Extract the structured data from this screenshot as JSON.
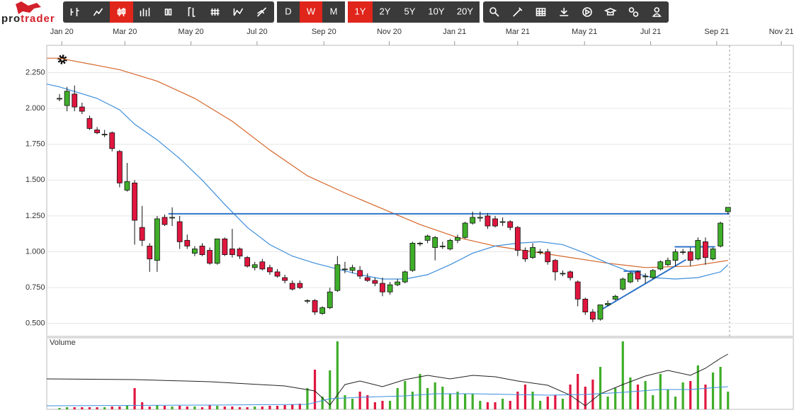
{
  "logo": {
    "first": "pro",
    "second": "trader"
  },
  "toolbar": {
    "chart_types_active": 2,
    "intervals": [
      "D",
      "W",
      "M"
    ],
    "active_interval": 1,
    "ranges": [
      "1Y",
      "2Y",
      "5Y",
      "10Y",
      "20Y"
    ],
    "active_range": 0
  },
  "chart_data": {
    "type": "candlestick",
    "xlim": [
      -1.7,
      97.7
    ],
    "xticks": [
      {
        "value": 0.3,
        "label": "Jan 20"
      },
      {
        "value": 8.7,
        "label": "Mar 20"
      },
      {
        "value": 17.5,
        "label": "May 20"
      },
      {
        "value": 26.3,
        "label": "Jul 20"
      },
      {
        "value": 35.2,
        "label": "Sep 20"
      },
      {
        "value": 43.9,
        "label": "Nov 20"
      },
      {
        "value": 52.6,
        "label": "Jan 21"
      },
      {
        "value": 61.0,
        "label": "Mar 21"
      },
      {
        "value": 69.9,
        "label": "May 21"
      },
      {
        "value": 78.7,
        "label": "Jul 21"
      },
      {
        "value": 87.5,
        "label": "Sep 21"
      },
      {
        "value": 96.1,
        "label": "Nov 21"
      }
    ],
    "ylim": [
      0.41,
      2.44
    ],
    "yticks": [
      {
        "value": 0.5,
        "label": "0.500"
      },
      {
        "value": 0.75,
        "label": "0.750"
      },
      {
        "value": 1,
        "label": "1.000"
      },
      {
        "value": 1.25,
        "label": "1.250"
      },
      {
        "value": 1.5,
        "label": "1.500"
      },
      {
        "value": 1.75,
        "label": "1.750"
      },
      {
        "value": 2,
        "label": "2.000"
      },
      {
        "value": 2.25,
        "label": "2.250"
      }
    ],
    "grid": true,
    "up_color": "#3fae29",
    "down_color": "#e0163f",
    "x": [
      0,
      1,
      2,
      3,
      4,
      5,
      6,
      7,
      8,
      9,
      10,
      11,
      12,
      13,
      14,
      15,
      16,
      17,
      18,
      19,
      20,
      21,
      22,
      23,
      24,
      25,
      26,
      27,
      28,
      29,
      30,
      31,
      32,
      33,
      34,
      35,
      36,
      37,
      38,
      39,
      40,
      41,
      42,
      43,
      44,
      45,
      46,
      47,
      48,
      49,
      50,
      51,
      52,
      53,
      54,
      55,
      56,
      57,
      58,
      59,
      60,
      61,
      62,
      63,
      64,
      65,
      66,
      67,
      68,
      69,
      70,
      71,
      72,
      73,
      74,
      75,
      76,
      77,
      78,
      79,
      80,
      81,
      82,
      83,
      84,
      85,
      86,
      87,
      88,
      89
    ],
    "open": [
      2.07,
      2.02,
      2.1,
      2.01,
      1.93,
      1.85,
      1.82,
      1.83,
      1.7,
      1.43,
      1.48,
      1.17,
      1.04,
      0.94,
      1.24,
      1.24,
      1.21,
      1.08,
      0.99,
      1.04,
      1.01,
      0.92,
      1.09,
      1.02,
      1.02,
      0.96,
      0.89,
      0.93,
      0.89,
      0.86,
      0.82,
      0.78,
      0.78,
      0.66,
      0.66,
      0.57,
      0.61,
      0.73,
      0.88,
      0.87,
      0.87,
      0.82,
      0.8,
      0.78,
      0.72,
      0.77,
      0.79,
      0.87,
      1.06,
      1.08,
      1.03,
      1.04,
      1.02,
      1.08,
      1.1,
      1.2,
      1.24,
      1.25,
      1.23,
      1.21,
      1.21,
      1.17,
      1.01,
      0.96,
      1.0,
      1.0,
      0.94,
      0.85,
      0.86,
      0.79,
      0.67,
      0.58,
      0.53,
      0.63,
      0.67,
      0.74,
      0.79,
      0.86,
      0.83,
      0.82,
      0.88,
      0.91,
      0.94,
      1.0,
      1.0,
      0.95,
      1.07,
      0.95,
      1.04,
      1.28
    ],
    "high": [
      2.1,
      2.15,
      2.16,
      2.04,
      1.95,
      1.87,
      1.85,
      1.84,
      1.71,
      1.62,
      1.5,
      1.32,
      1.06,
      1.25,
      1.26,
      1.31,
      1.25,
      1.12,
      1.04,
      1.06,
      1.03,
      1.09,
      1.1,
      1.16,
      1.03,
      0.97,
      0.93,
      0.95,
      0.91,
      0.88,
      0.84,
      0.8,
      0.8,
      0.67,
      0.67,
      0.62,
      0.75,
      0.97,
      0.93,
      0.91,
      0.9,
      0.85,
      0.82,
      0.82,
      0.79,
      0.81,
      0.87,
      1.07,
      1.07,
      1.12,
      1.11,
      1.07,
      1.09,
      1.12,
      1.21,
      1.28,
      1.28,
      1.27,
      1.25,
      1.24,
      1.22,
      1.18,
      1.03,
      1.06,
      1.02,
      1.02,
      0.95,
      0.87,
      0.87,
      0.8,
      0.68,
      0.6,
      0.63,
      0.66,
      0.7,
      0.82,
      0.86,
      0.87,
      0.85,
      0.88,
      0.94,
      0.96,
      1.02,
      1.02,
      1.03,
      1.1,
      1.1,
      1.03,
      1.21,
      1.31
    ],
    "low": [
      2.05,
      1.98,
      1.98,
      1.96,
      1.85,
      1.82,
      1.8,
      1.7,
      1.45,
      1.42,
      1.05,
      1.04,
      0.86,
      0.86,
      1.18,
      1.18,
      1.02,
      1.02,
      0.97,
      0.97,
      0.91,
      0.91,
      0.97,
      0.96,
      0.95,
      0.89,
      0.87,
      0.87,
      0.84,
      0.82,
      0.78,
      0.73,
      0.74,
      0.64,
      0.56,
      0.56,
      0.6,
      0.72,
      0.85,
      0.85,
      0.81,
      0.79,
      0.76,
      0.69,
      0.7,
      0.76,
      0.78,
      0.86,
      1.04,
      1.06,
      0.94,
      1.02,
      1.01,
      1.06,
      1.09,
      1.19,
      1.21,
      1.16,
      1.17,
      1.18,
      1.15,
      0.97,
      0.93,
      0.95,
      0.98,
      0.91,
      0.8,
      0.83,
      0.8,
      0.62,
      0.56,
      0.51,
      0.52,
      0.62,
      0.66,
      0.73,
      0.78,
      0.79,
      0.78,
      0.81,
      0.87,
      0.9,
      0.9,
      0.98,
      0.9,
      0.94,
      0.91,
      0.94,
      1.03,
      1.26
    ],
    "close": [
      2.07,
      2.12,
      2.01,
      1.98,
      1.86,
      1.83,
      1.82,
      1.72,
      1.48,
      1.49,
      1.22,
      1.08,
      0.95,
      1.23,
      1.19,
      1.24,
      1.07,
      1.04,
      1.02,
      0.98,
      0.92,
      1.09,
      0.98,
      0.98,
      0.97,
      0.9,
      0.91,
      0.88,
      0.86,
      0.83,
      0.8,
      0.74,
      0.75,
      0.66,
      0.58,
      0.61,
      0.72,
      0.91,
      0.88,
      0.89,
      0.83,
      0.8,
      0.78,
      0.72,
      0.77,
      0.79,
      0.86,
      1.06,
      1.06,
      1.11,
      1.1,
      1.04,
      1.08,
      1.1,
      1.2,
      1.24,
      1.24,
      1.18,
      1.18,
      1.21,
      1.17,
      1.01,
      0.95,
      1.03,
      1.0,
      0.93,
      0.86,
      0.85,
      0.82,
      0.67,
      0.58,
      0.53,
      0.63,
      0.64,
      0.69,
      0.81,
      0.85,
      0.81,
      0.83,
      0.87,
      0.93,
      0.94,
      1.0,
      1.0,
      0.94,
      1.08,
      0.96,
      1.02,
      1.2,
      1.31
    ],
    "moving_averages": [
      {
        "color": "#d5662a",
        "x": [
          -1.7,
          0,
          5,
          8,
          13,
          18,
          23,
          28,
          33,
          38,
          43,
          48,
          53,
          58,
          63,
          68,
          73,
          78,
          84,
          89
        ],
        "values": [
          2.35,
          2.35,
          2.3,
          2.27,
          2.19,
          2.07,
          1.91,
          1.71,
          1.53,
          1.41,
          1.3,
          1.19,
          1.1,
          1.04,
          1.0,
          0.96,
          0.92,
          0.89,
          0.9,
          0.94
        ]
      },
      {
        "color": "#3d8fdc",
        "x": [
          -1.7,
          0,
          5,
          8,
          10,
          13,
          16,
          19,
          22,
          25,
          28,
          31,
          34,
          37,
          40,
          43,
          46,
          49,
          52,
          55,
          58,
          61,
          64,
          67,
          70,
          73,
          76,
          79,
          82,
          85,
          88,
          89
        ],
        "values": [
          2.17,
          2.15,
          2.07,
          1.99,
          1.89,
          1.78,
          1.65,
          1.5,
          1.33,
          1.17,
          1.05,
          0.97,
          0.92,
          0.88,
          0.84,
          0.81,
          0.81,
          0.84,
          0.91,
          0.99,
          1.04,
          1.06,
          1.07,
          1.05,
          0.99,
          0.92,
          0.86,
          0.82,
          0.81,
          0.82,
          0.86,
          0.91
        ]
      }
    ],
    "drawings": [
      {
        "color": "#2f74c8",
        "x": [
          14.5,
          89.2
        ],
        "values": [
          1.265,
          1.265
        ]
      },
      {
        "color": "#2f74c8",
        "x": [
          71.6,
          83.4
        ],
        "values": [
          0.58,
          0.945
        ]
      },
      {
        "color": "#2f74c8",
        "x": [
          75.1,
          77.4
        ],
        "values": [
          0.865,
          0.865
        ]
      },
      {
        "color": "#2f74c8",
        "x": [
          81.9,
          87.3
        ],
        "values": [
          1.035,
          1.035
        ]
      }
    ],
    "volume": {
      "title": "Volume",
      "ylim": [
        0,
        100
      ],
      "values": [
        2,
        3,
        3,
        3,
        3,
        3,
        3,
        4,
        4,
        5,
        30,
        10,
        4,
        6,
        5,
        4,
        5,
        4,
        4,
        3,
        6,
        5,
        4,
        4,
        3,
        3,
        4,
        4,
        5,
        5,
        6,
        7,
        8,
        30,
        56,
        18,
        55,
        96,
        20,
        15,
        25,
        20,
        10,
        12,
        12,
        30,
        40,
        25,
        50,
        30,
        38,
        32,
        22,
        25,
        22,
        22,
        12,
        10,
        10,
        15,
        12,
        25,
        35,
        25,
        12,
        18,
        20,
        15,
        35,
        50,
        32,
        42,
        60,
        18,
        30,
        96,
        45,
        35,
        40,
        20,
        50,
        28,
        18,
        38,
        40,
        62,
        35,
        52,
        60,
        25
      ],
      "lines": [
        {
          "color": "#222222",
          "x": [
            -1.7,
            10,
            20,
            30,
            34,
            36,
            38,
            40,
            43,
            46,
            49,
            52,
            55,
            58,
            61,
            65,
            68,
            70,
            72,
            75,
            78,
            81,
            84,
            86,
            88,
            89
          ],
          "values": [
            43,
            42,
            39,
            33,
            26,
            6,
            35,
            40,
            32,
            42,
            48,
            43,
            48,
            46,
            40,
            34,
            20,
            5,
            22,
            35,
            47,
            55,
            48,
            58,
            72,
            78
          ]
        },
        {
          "color": "#3d8fdc",
          "x": [
            -1.7,
            20,
            33,
            36,
            40,
            46,
            50,
            55,
            60,
            65,
            70,
            75,
            80,
            84,
            89
          ],
          "values": [
            5,
            6,
            7,
            15,
            17,
            19,
            22,
            22,
            21,
            20,
            21,
            24,
            28,
            28,
            32
          ]
        }
      ]
    }
  }
}
